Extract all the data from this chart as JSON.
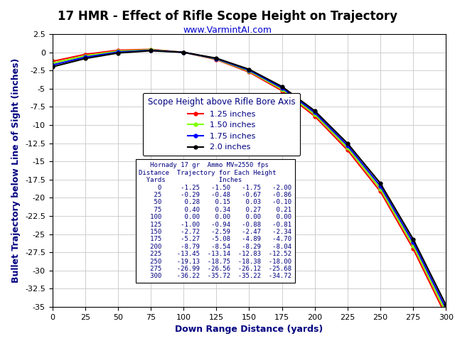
{
  "title": "17 HMR - Effect of Rifle Scope Height on Trajectory",
  "subtitle": "www.VarmintAI.com",
  "xlabel": "Down Range Distance (yards)",
  "ylabel": "Bullet Trajectory below Line of Sight (inches)",
  "distances": [
    0,
    25,
    50,
    75,
    100,
    125,
    150,
    175,
    200,
    225,
    250,
    275,
    300
  ],
  "traj_1_25": [
    -1.25,
    -0.29,
    0.28,
    0.4,
    0.0,
    -1.0,
    -2.72,
    -5.27,
    -8.79,
    -13.45,
    -19.13,
    -26.99,
    -36.22
  ],
  "traj_1_50": [
    -1.5,
    -0.48,
    0.15,
    0.34,
    0.0,
    -0.94,
    -2.59,
    -5.08,
    -8.54,
    -13.14,
    -18.75,
    -26.56,
    -35.72
  ],
  "traj_1_75": [
    -1.75,
    -0.67,
    0.03,
    0.27,
    0.0,
    -0.88,
    -2.47,
    -4.89,
    -8.29,
    -12.83,
    -18.38,
    -26.12,
    -35.22
  ],
  "traj_2_00": [
    -2.0,
    -0.86,
    -0.1,
    0.21,
    0.0,
    -0.81,
    -2.34,
    -4.7,
    -8.04,
    -12.52,
    -18.0,
    -25.68,
    -34.72
  ],
  "colors": [
    "#ff0000",
    "#80ff00",
    "#0000ff",
    "#000000"
  ],
  "labels": [
    "1.25 inches",
    "1.50 inches",
    "1.75 inches",
    "2.0 inches"
  ],
  "ylim": [
    -35,
    2.5
  ],
  "xlim": [
    0,
    300
  ],
  "xticks": [
    0,
    25,
    50,
    75,
    100,
    125,
    150,
    175,
    200,
    225,
    250,
    275,
    300
  ],
  "yticks": [
    2.5,
    0,
    -2.5,
    -5,
    -7.5,
    -10,
    -12.5,
    -15,
    -17.5,
    -20,
    -22.5,
    -25,
    -27.5,
    -30,
    -32.5,
    -35
  ],
  "bg_color": "#ffffff",
  "grid_color": "#c8c8c8",
  "title_color": "#000000",
  "subtitle_color": "#0000cc",
  "label_color": "#000080",
  "table_text_color": "#000080"
}
